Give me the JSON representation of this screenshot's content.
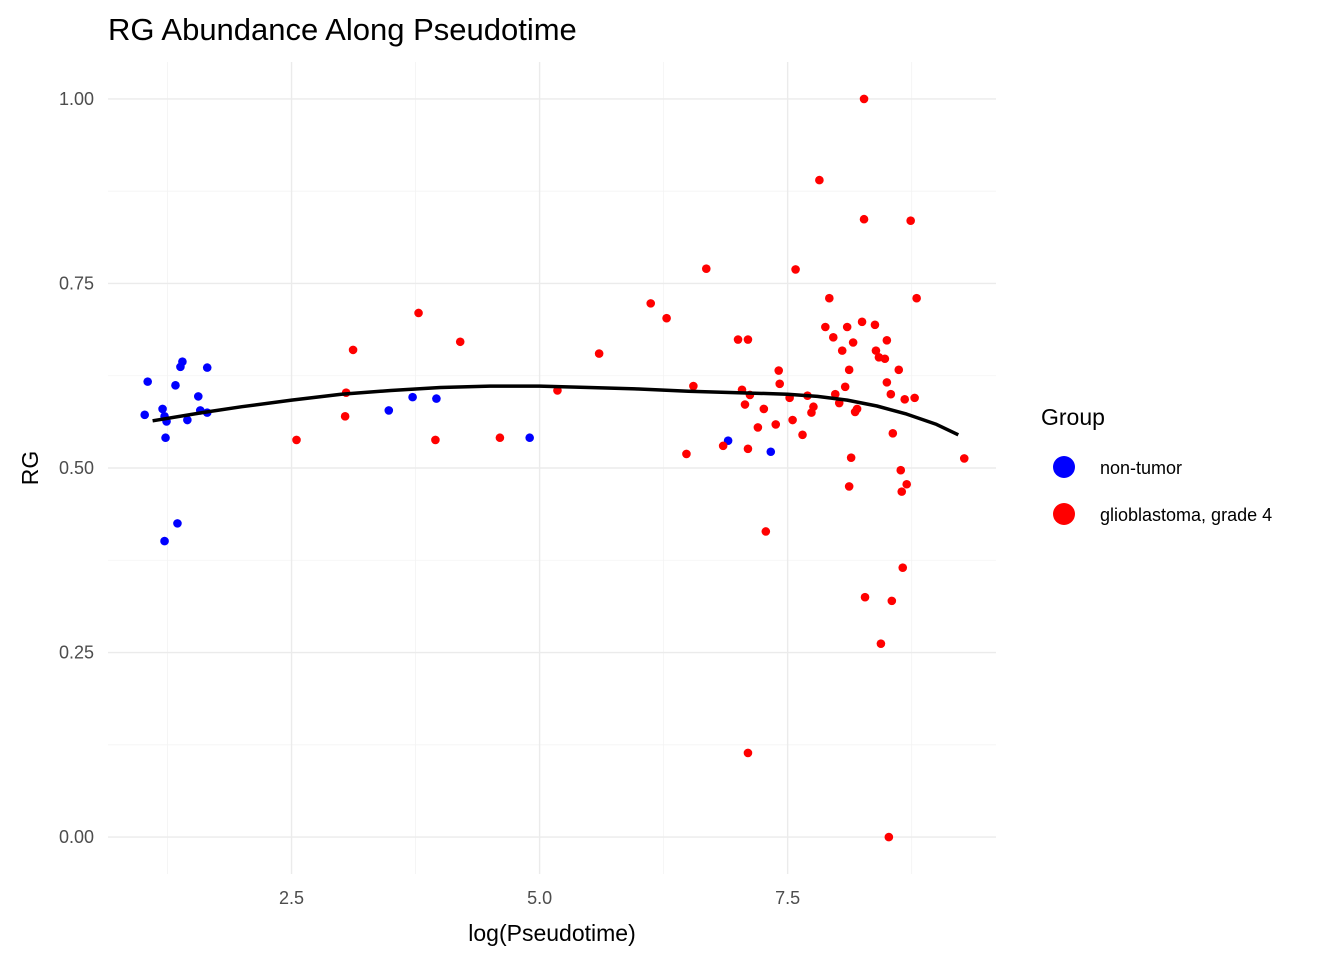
{
  "chart_data": {
    "type": "scatter",
    "title": "RG Abundance Along Pseudotime",
    "xlabel": "log(Pseudotime)",
    "ylabel": "RG",
    "xlim": [
      0.65,
      9.6
    ],
    "ylim": [
      -0.05,
      1.05
    ],
    "x_ticks": [
      2.5,
      5.0,
      7.5
    ],
    "x_tick_labels": [
      "2.5",
      "5.0",
      "7.5"
    ],
    "x_minor_ticks": [
      1.25,
      3.75,
      6.25,
      8.75
    ],
    "y_ticks": [
      0.0,
      0.25,
      0.5,
      0.75,
      1.0
    ],
    "y_tick_labels": [
      "0.00",
      "0.25",
      "0.50",
      "0.75",
      "1.00"
    ],
    "y_minor_ticks": [
      0.125,
      0.375,
      0.625,
      0.875
    ],
    "grid": true,
    "legend": {
      "title": "Group",
      "placement": "right"
    },
    "series": [
      {
        "name": "non-tumor",
        "color": "#0000ff",
        "points": [
          [
            1.02,
            0.572
          ],
          [
            1.05,
            0.617
          ],
          [
            1.2,
            0.58
          ],
          [
            1.22,
            0.57
          ],
          [
            1.23,
            0.541
          ],
          [
            1.24,
            0.563
          ],
          [
            1.22,
            0.401
          ],
          [
            1.33,
            0.612
          ],
          [
            1.35,
            0.425
          ],
          [
            1.38,
            0.637
          ],
          [
            1.4,
            0.644
          ],
          [
            1.45,
            0.565
          ],
          [
            1.56,
            0.597
          ],
          [
            1.58,
            0.578
          ],
          [
            1.65,
            0.575
          ],
          [
            1.65,
            0.636
          ],
          [
            3.48,
            0.578
          ],
          [
            3.72,
            0.596
          ],
          [
            3.96,
            0.594
          ],
          [
            4.9,
            0.541
          ],
          [
            6.9,
            0.537
          ],
          [
            7.33,
            0.522
          ]
        ]
      },
      {
        "name": "glioblastoma, grade 4",
        "color": "#ff0000",
        "points": [
          [
            2.55,
            0.538
          ],
          [
            3.04,
            0.57
          ],
          [
            3.05,
            0.602
          ],
          [
            3.12,
            0.66
          ],
          [
            3.78,
            0.71
          ],
          [
            3.95,
            0.538
          ],
          [
            4.2,
            0.671
          ],
          [
            4.6,
            0.541
          ],
          [
            5.18,
            0.605
          ],
          [
            5.6,
            0.655
          ],
          [
            6.12,
            0.723
          ],
          [
            6.28,
            0.703
          ],
          [
            6.48,
            0.519
          ],
          [
            6.55,
            0.611
          ],
          [
            6.68,
            0.77
          ],
          [
            6.85,
            0.53
          ],
          [
            7.0,
            0.674
          ],
          [
            7.04,
            0.606
          ],
          [
            7.07,
            0.586
          ],
          [
            7.1,
            0.674
          ],
          [
            7.1,
            0.526
          ],
          [
            7.1,
            0.114
          ],
          [
            7.12,
            0.599
          ],
          [
            7.2,
            0.555
          ],
          [
            7.26,
            0.58
          ],
          [
            7.28,
            0.414
          ],
          [
            7.38,
            0.559
          ],
          [
            7.41,
            0.632
          ],
          [
            7.42,
            0.614
          ],
          [
            7.52,
            0.595
          ],
          [
            7.55,
            0.565
          ],
          [
            7.58,
            0.769
          ],
          [
            7.65,
            0.545
          ],
          [
            7.7,
            0.598
          ],
          [
            7.74,
            0.575
          ],
          [
            7.76,
            0.583
          ],
          [
            7.82,
            0.89
          ],
          [
            7.88,
            0.691
          ],
          [
            7.92,
            0.73
          ],
          [
            7.96,
            0.677
          ],
          [
            7.98,
            0.6
          ],
          [
            8.02,
            0.588
          ],
          [
            8.05,
            0.659
          ],
          [
            8.08,
            0.61
          ],
          [
            8.1,
            0.691
          ],
          [
            8.12,
            0.633
          ],
          [
            8.12,
            0.475
          ],
          [
            8.14,
            0.514
          ],
          [
            8.16,
            0.67
          ],
          [
            8.18,
            0.576
          ],
          [
            8.2,
            0.58
          ],
          [
            8.25,
            0.698
          ],
          [
            8.27,
            1.0
          ],
          [
            8.27,
            0.837
          ],
          [
            8.28,
            0.325
          ],
          [
            8.38,
            0.694
          ],
          [
            8.39,
            0.659
          ],
          [
            8.42,
            0.65
          ],
          [
            8.44,
            0.262
          ],
          [
            8.48,
            0.648
          ],
          [
            8.5,
            0.673
          ],
          [
            8.5,
            0.616
          ],
          [
            8.52,
            0.0
          ],
          [
            8.54,
            0.6
          ],
          [
            8.55,
            0.32
          ],
          [
            8.56,
            0.547
          ],
          [
            8.62,
            0.633
          ],
          [
            8.64,
            0.497
          ],
          [
            8.65,
            0.468
          ],
          [
            8.66,
            0.365
          ],
          [
            8.68,
            0.593
          ],
          [
            8.7,
            0.478
          ],
          [
            8.74,
            0.835
          ],
          [
            8.78,
            0.595
          ],
          [
            8.8,
            0.73
          ],
          [
            9.28,
            0.513
          ]
        ]
      }
    ],
    "trend_line": {
      "color": "#000000",
      "points": [
        [
          1.1,
          0.564
        ],
        [
          1.6,
          0.575
        ],
        [
          2.0,
          0.583
        ],
        [
          2.5,
          0.592
        ],
        [
          3.0,
          0.6
        ],
        [
          3.5,
          0.605
        ],
        [
          4.0,
          0.609
        ],
        [
          4.5,
          0.611
        ],
        [
          5.0,
          0.611
        ],
        [
          5.5,
          0.609
        ],
        [
          6.0,
          0.607
        ],
        [
          6.5,
          0.604
        ],
        [
          7.0,
          0.602
        ],
        [
          7.5,
          0.6
        ],
        [
          7.8,
          0.597
        ],
        [
          8.1,
          0.592
        ],
        [
          8.4,
          0.584
        ],
        [
          8.7,
          0.573
        ],
        [
          9.0,
          0.559
        ],
        [
          9.22,
          0.545
        ]
      ]
    }
  }
}
